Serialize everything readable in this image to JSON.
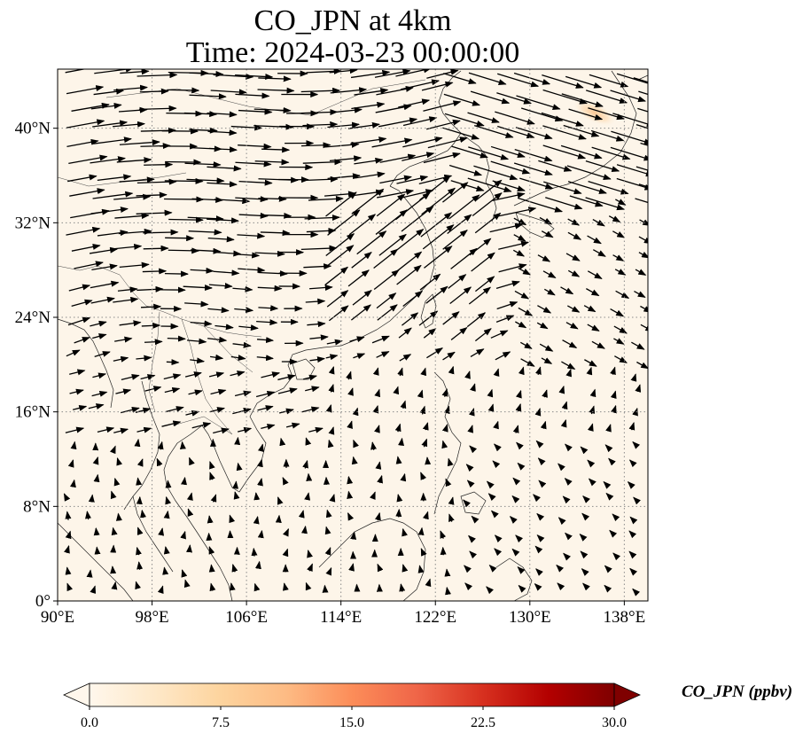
{
  "title_line1": "CO_JPN at 4km",
  "title_line2": "Time: 2024-03-23 00:00:00",
  "colorbar_label": "CO_JPN (ppbv)",
  "chart_data": {
    "type": "heatmap",
    "variable": "CO_JPN",
    "level": "4km",
    "time": "2024-03-23 00:00:00",
    "projection": "PlateCarree",
    "lon_range": [
      90,
      140
    ],
    "lat_range": [
      0,
      45
    ],
    "lon_ticks": [
      "90°E",
      "98°E",
      "106°E",
      "114°E",
      "122°E",
      "130°E",
      "138°E"
    ],
    "lon_tick_values": [
      90,
      98,
      106,
      114,
      122,
      130,
      138
    ],
    "lat_ticks": [
      "0°",
      "8°N",
      "16°N",
      "24°N",
      "32°N",
      "40°N"
    ],
    "lat_tick_values": [
      0,
      8,
      16,
      24,
      32,
      40
    ],
    "grid": "dotted",
    "colorbar": {
      "cmap": "OrRd",
      "ticks": [
        "0.0",
        "7.5",
        "15.0",
        "22.5",
        "30.0"
      ],
      "range": [
        0,
        30
      ],
      "extend": "both",
      "orientation": "horizontal",
      "colors": [
        "#fff7ec",
        "#fee8c8",
        "#fdd49e",
        "#fdbb84",
        "#fc8d59",
        "#ef6548",
        "#d7301f",
        "#b30000",
        "#7f0000"
      ]
    },
    "field_background_value": 1,
    "hotspots": [
      {
        "lon": 135.5,
        "lat": 41.3,
        "value": 7
      }
    ],
    "wind_vectors": "regular lon/lat grid of wind arrows (westerlies north of ~20°N, weak southerlies in the tropics)"
  }
}
